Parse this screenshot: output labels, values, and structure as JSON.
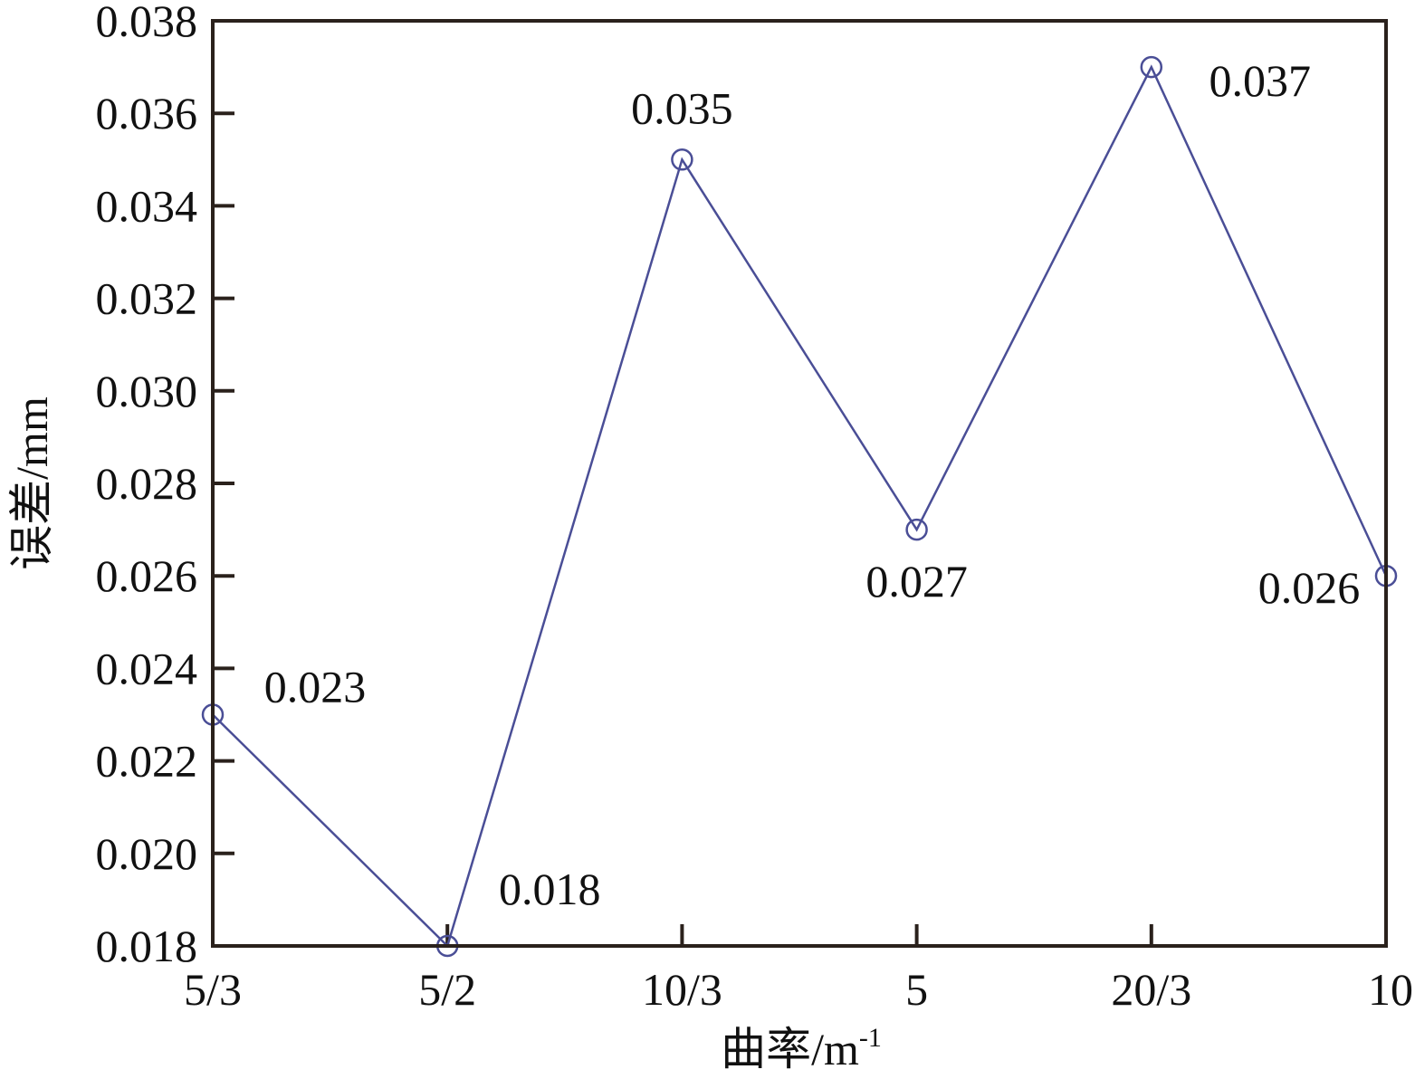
{
  "chart_data": {
    "type": "line",
    "title": "",
    "xlabel": "曲率/m",
    "xlabel_superscript": "-1",
    "ylabel": "误差/mm",
    "categories": [
      "5/3",
      "5/2",
      "10/3",
      "5",
      "20/3",
      "10"
    ],
    "series": [
      {
        "values": [
          0.023,
          0.018,
          0.035,
          0.027,
          0.037,
          0.026
        ],
        "color": "#4a4e96",
        "marker": "open-circle"
      }
    ],
    "data_labels": [
      "0.023",
      "0.018",
      "0.035",
      "0.027",
      "0.037",
      "0.026"
    ],
    "ylim": [
      0.018,
      0.038
    ],
    "yticks": [
      "0.018",
      "0.020",
      "0.022",
      "0.024",
      "0.026",
      "0.028",
      "0.030",
      "0.032",
      "0.034",
      "0.036",
      "0.038"
    ],
    "grid": false,
    "legend": "none",
    "frame_color": "#2a211c"
  }
}
